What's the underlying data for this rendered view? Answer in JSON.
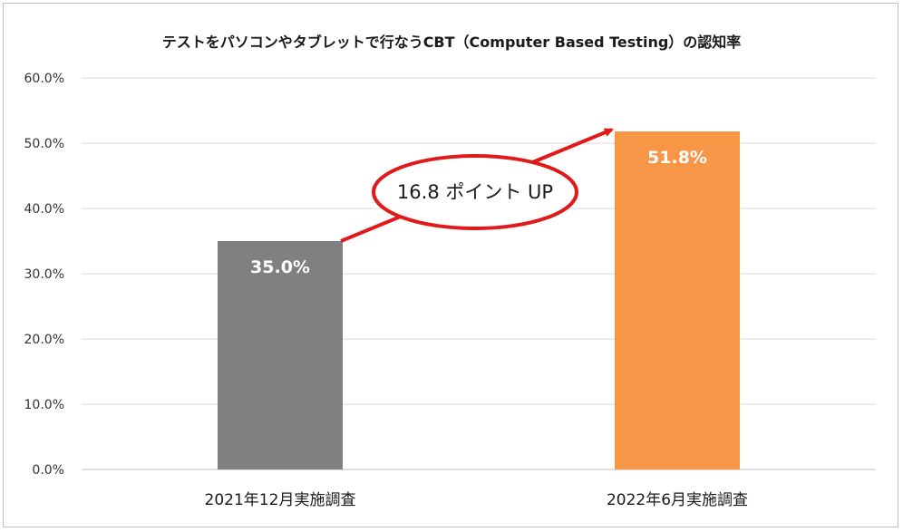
{
  "chart_data": {
    "type": "bar",
    "title": "テストをパソコンやタブレットで行なうCBT（Computer Based Testing）の認知率",
    "categories": [
      "2021年12月実施調査",
      "2022年6月実施調査"
    ],
    "values": [
      35.0,
      51.8
    ],
    "data_labels": [
      "35.0%",
      "51.8%"
    ],
    "bar_colors": [
      "#808080",
      "#f79646"
    ],
    "ylim": [
      0,
      60
    ],
    "yticks": [
      0,
      10,
      20,
      30,
      40,
      50,
      60
    ],
    "ytick_labels": [
      "0.0%",
      "10.0%",
      "20.0%",
      "30.0%",
      "40.0%",
      "50.0%",
      "60.0%"
    ],
    "grid": true,
    "annotation": {
      "text": "16.8 ポイント UP",
      "color": "#e0191b"
    }
  }
}
